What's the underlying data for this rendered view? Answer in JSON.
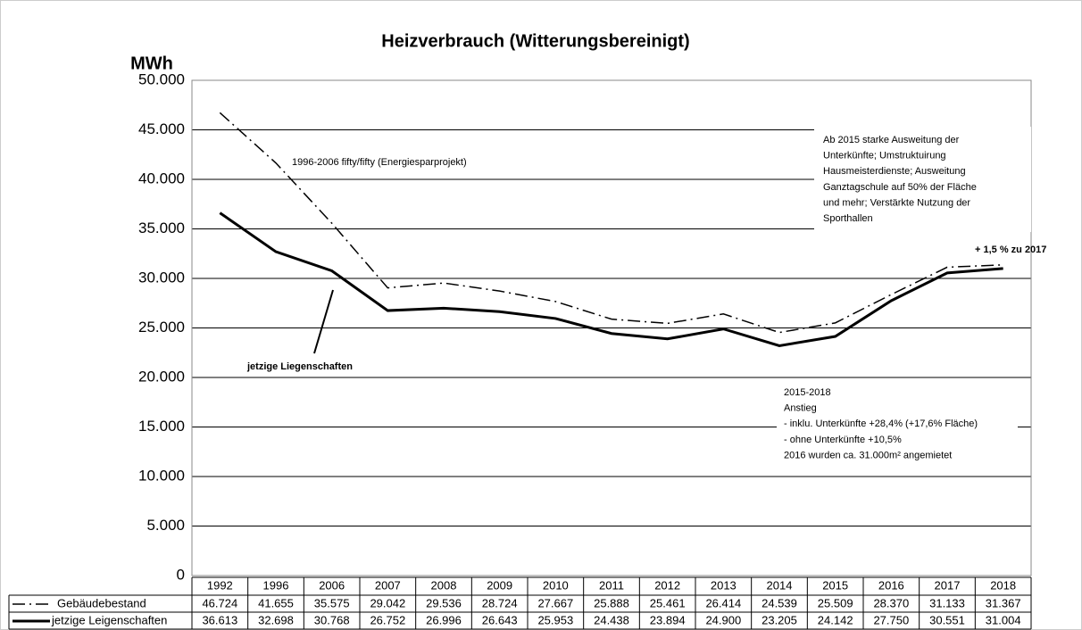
{
  "chart_data": {
    "type": "line",
    "title": "Heizverbrauch (Witterungsbereinigt)",
    "y_label": "MWh",
    "categories": [
      "1992",
      "1996",
      "2006",
      "2007",
      "2008",
      "2009",
      "2010",
      "2011",
      "2012",
      "2013",
      "2014",
      "2015",
      "2016",
      "2017",
      "2018"
    ],
    "series": [
      {
        "name": "Gebäudebestand",
        "color": "#000000",
        "style": "dash-dot",
        "values": [
          46724,
          41655,
          35575,
          29042,
          29536,
          28724,
          27667,
          25888,
          25461,
          26414,
          24539,
          25509,
          28370,
          31133,
          31367
        ],
        "value_labels": [
          "46.724",
          "41.655",
          "35.575",
          "29.042",
          "29.536",
          "28.724",
          "27.667",
          "25.888",
          "25.461",
          "26.414",
          "24.539",
          "25.509",
          "28.370",
          "31.133",
          "31.367"
        ]
      },
      {
        "name": "jetzige Leigenschaften",
        "color": "#000000",
        "style": "solid",
        "values": [
          36613,
          32698,
          30768,
          26752,
          26996,
          26643,
          25953,
          24438,
          23894,
          24900,
          23205,
          24142,
          27750,
          30551,
          31004
        ],
        "value_labels": [
          "36.613",
          "32.698",
          "30.768",
          "26.752",
          "26.996",
          "26.643",
          "25.953",
          "24.438",
          "23.894",
          "24.900",
          "23.205",
          "24.142",
          "27.750",
          "30.551",
          "31.004"
        ]
      }
    ],
    "ylim": [
      0,
      50000
    ],
    "yticks": [
      0,
      {
        "value": 5000,
        "label": "5.000"
      },
      {
        "value": 10000,
        "label": "10.000"
      },
      {
        "value": 15000,
        "label": "15.000"
      },
      {
        "value": 20000,
        "label": "20.000"
      },
      {
        "value": 25000,
        "label": "25.000"
      },
      {
        "value": 30000,
        "label": "30.000"
      },
      {
        "value": 35000,
        "label": "35.000"
      },
      {
        "value": 40000,
        "label": "40.000"
      },
      {
        "value": 45000,
        "label": "45.000"
      },
      {
        "value": 50000,
        "label": "50.000"
      }
    ],
    "grid": true,
    "annotations": {
      "project": "1996-2006 fifty/fifty (Energiesparprojekt)",
      "current": "jetzige Liegenschaften",
      "change": "+ 1,5 % zu 2017",
      "note_2015": [
        "Ab 2015 starke Ausweitung der",
        "Unterkünfte; Umstruktuirung",
        "Hausmeisterdienste; Ausweitung",
        "Ganztagschule  auf 50% der Fläche",
        "und mehr; Verstärkte Nutzung der",
        "Sporthallen"
      ],
      "note_increase": [
        "2015-2018",
        "Anstieg",
        "- inklu. Unterkünfte +28,4% (+17,6% Fläche)",
        "- ohne Unterkünfte  +10,5%",
        "2016 wurden ca. 31.000m² angemietet"
      ]
    }
  }
}
